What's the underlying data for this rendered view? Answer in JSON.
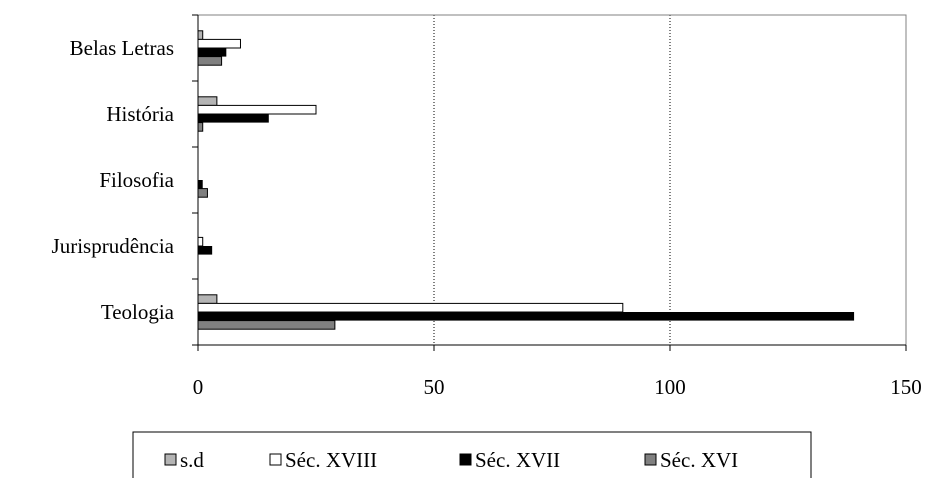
{
  "chart_data": {
    "type": "bar",
    "orientation": "horizontal",
    "categories": [
      "Teologia",
      "Jurisprudência",
      "Filosofia",
      "História",
      "Belas Letras"
    ],
    "series": [
      {
        "name": "s.d",
        "values": [
          4,
          0,
          0,
          4,
          1
        ],
        "color": "#b4b4b4"
      },
      {
        "name": "Séc. XVIII",
        "values": [
          90,
          1,
          0,
          25,
          9
        ],
        "color": "#ffffff"
      },
      {
        "name": "Séc. XVII",
        "values": [
          139,
          3,
          1,
          15,
          6
        ],
        "color": "#000000"
      },
      {
        "name": "Séc. XVI",
        "values": [
          29,
          0,
          2,
          1,
          5
        ],
        "color": "#808080"
      }
    ],
    "xlim": [
      0,
      150
    ],
    "xticks": [
      "0",
      "50",
      "100",
      "150"
    ],
    "grid": "vertical dotted at major ticks",
    "legend_position": "bottom",
    "title": "",
    "xlabel": "",
    "ylabel": ""
  }
}
